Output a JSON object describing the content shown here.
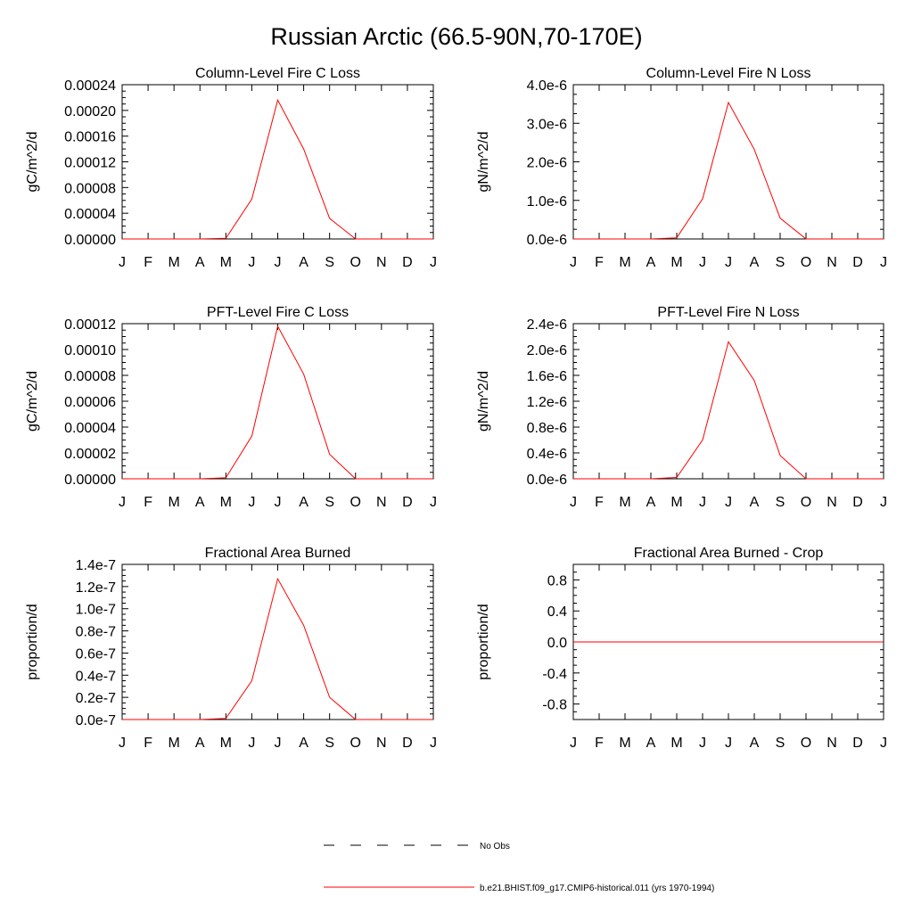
{
  "main_title": "Russian Arctic (66.5-90N,70-170E)",
  "colors": {
    "series": "#ff0000",
    "obs": "#000000",
    "axis": "#000000"
  },
  "legend": {
    "entries": [
      {
        "label": "No Obs",
        "style": "dashed",
        "color": "#000000"
      },
      {
        "label": "b.e21.BHIST.f09_g17.CMIP6-historical.011 (yrs 1970-1994)",
        "style": "solid",
        "color": "#ff0000"
      }
    ]
  },
  "chart_data": [
    {
      "type": "line",
      "title": "Column-Level Fire C Loss",
      "ylabel": "gC/m^2/d",
      "categories": [
        "J",
        "F",
        "M",
        "A",
        "M",
        "J",
        "J",
        "A",
        "S",
        "O",
        "N",
        "D",
        "J"
      ],
      "ylim": [
        0,
        0.00024
      ],
      "yticks": [
        0,
        4e-05,
        8e-05,
        0.00012,
        0.00016,
        0.0002,
        0.00024
      ],
      "ytick_labels": [
        "0.00000",
        "0.00004",
        "0.00008",
        "0.00012",
        "0.00016",
        "0.00020",
        "0.00024"
      ],
      "series": [
        {
          "values": [
            0,
            0,
            0,
            0,
            1e-06,
            6.2e-05,
            0.000216,
            0.00014,
            3.2e-05,
            0,
            0,
            0,
            0
          ]
        }
      ]
    },
    {
      "type": "line",
      "title": "Column-Level Fire N Loss",
      "ylabel": "gN/m^2/d",
      "categories": [
        "J",
        "F",
        "M",
        "A",
        "M",
        "J",
        "J",
        "A",
        "S",
        "O",
        "N",
        "D",
        "J"
      ],
      "ylim": [
        0,
        4e-06
      ],
      "yticks": [
        0,
        1e-06,
        2e-06,
        3e-06,
        4e-06
      ],
      "ytick_labels": [
        "0.0e-6",
        "1.0e-6",
        "2.0e-6",
        "3.0e-6",
        "4.0e-6"
      ],
      "series": [
        {
          "values": [
            0,
            0,
            0,
            0,
            3e-08,
            1.04e-06,
            3.54e-06,
            2.32e-06,
            5.4e-07,
            0,
            0,
            0,
            0
          ]
        }
      ]
    },
    {
      "type": "line",
      "title": "PFT-Level Fire C Loss",
      "ylabel": "gC/m^2/d",
      "categories": [
        "J",
        "F",
        "M",
        "A",
        "M",
        "J",
        "J",
        "A",
        "S",
        "O",
        "N",
        "D",
        "J"
      ],
      "ylim": [
        0,
        0.00012
      ],
      "yticks": [
        0,
        2e-05,
        4e-05,
        6e-05,
        8e-05,
        0.0001,
        0.00012
      ],
      "ytick_labels": [
        "0.00000",
        "0.00002",
        "0.00004",
        "0.00006",
        "0.00008",
        "0.00010",
        "0.00012"
      ],
      "series": [
        {
          "values": [
            0,
            0,
            0,
            0,
            8e-07,
            3.3e-05,
            0.000118,
            8.1e-05,
            1.9e-05,
            0,
            0,
            0,
            0
          ]
        }
      ]
    },
    {
      "type": "line",
      "title": "PFT-Level Fire N Loss",
      "ylabel": "gN/m^2/d",
      "categories": [
        "J",
        "F",
        "M",
        "A",
        "M",
        "J",
        "J",
        "A",
        "S",
        "O",
        "N",
        "D",
        "J"
      ],
      "ylim": [
        0,
        2.4e-06
      ],
      "yticks": [
        0,
        4e-07,
        8e-07,
        1.2e-06,
        1.6e-06,
        2e-06,
        2.4e-06
      ],
      "ytick_labels": [
        "0.0e-6",
        "0.4e-6",
        "0.8e-6",
        "1.2e-6",
        "1.6e-6",
        "2.0e-6",
        "2.4e-6"
      ],
      "series": [
        {
          "values": [
            0,
            0,
            0,
            0,
            2e-08,
            6e-07,
            2.12e-06,
            1.52e-06,
            3.6e-07,
            0,
            0,
            0,
            0
          ]
        }
      ]
    },
    {
      "type": "line",
      "title": "Fractional Area Burned",
      "ylabel": "proportion/d",
      "categories": [
        "J",
        "F",
        "M",
        "A",
        "M",
        "J",
        "J",
        "A",
        "S",
        "O",
        "N",
        "D",
        "J"
      ],
      "ylim": [
        0,
        1.4e-07
      ],
      "yticks": [
        0,
        2e-08,
        4e-08,
        6e-08,
        8e-08,
        1e-07,
        1.2e-07,
        1.4e-07
      ],
      "ytick_labels": [
        "0.0e-7",
        "0.2e-7",
        "0.4e-7",
        "0.6e-7",
        "0.8e-7",
        "1.0e-7",
        "1.2e-7",
        "1.4e-7"
      ],
      "series": [
        {
          "values": [
            0,
            0,
            0,
            0,
            1e-09,
            3.5e-08,
            1.27e-07,
            8.5e-08,
            2e-08,
            0,
            0,
            0,
            0
          ]
        }
      ]
    },
    {
      "type": "line",
      "title": "Fractional Area Burned - Crop",
      "ylabel": "proportion/d",
      "categories": [
        "J",
        "F",
        "M",
        "A",
        "M",
        "J",
        "J",
        "A",
        "S",
        "O",
        "N",
        "D",
        "J"
      ],
      "ylim": [
        -1,
        1
      ],
      "yticks": [
        -0.8,
        -0.4,
        0,
        0.4,
        0.8
      ],
      "ytick_labels": [
        "-0.8",
        "-0.4",
        "0.0",
        "0.4",
        "0.8"
      ],
      "series": [
        {
          "values": [
            0,
            0,
            0,
            0,
            0,
            0,
            0,
            0,
            0,
            0,
            0,
            0,
            0
          ]
        }
      ]
    }
  ]
}
